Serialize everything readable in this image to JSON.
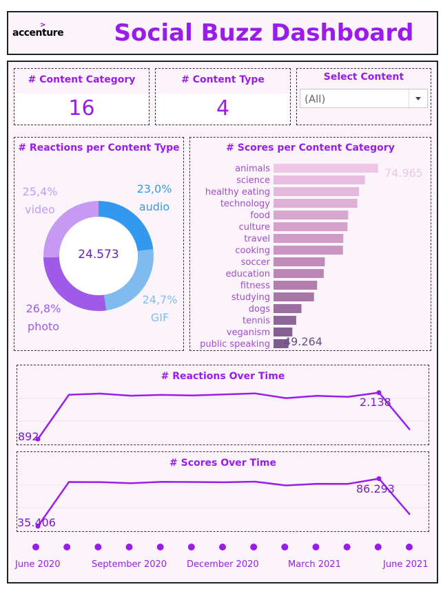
{
  "header": {
    "logo_text": "accenture",
    "logo_mark": ">",
    "title": "Social Buzz Dashboard"
  },
  "kpis": {
    "content_category": {
      "title": "# Content Category",
      "value": "16"
    },
    "content_type": {
      "title": "# Content Type",
      "value": "4"
    }
  },
  "filter": {
    "title": "Select Content",
    "selected": "(All)"
  },
  "donut": {
    "title": "# Reactions per Content Type",
    "center_value": "24.573",
    "chart_data": {
      "type": "pie",
      "slices": [
        {
          "name": "audio",
          "pct_label": "23,0%",
          "value": 23.0,
          "color": "#3399ee"
        },
        {
          "name": "GIF",
          "pct_label": "24,7%",
          "value": 24.7,
          "color": "#80bbf0"
        },
        {
          "name": "photo",
          "pct_label": "26,8%",
          "value": 26.8,
          "color": "#a05ae8"
        },
        {
          "name": "video",
          "pct_label": "25,4%",
          "value": 25.4,
          "color": "#c69af2"
        }
      ]
    }
  },
  "scores_bar": {
    "title": "# Scores per Content Category",
    "max_label": "74.965",
    "min_label": "49.264",
    "chart_data": {
      "type": "bar",
      "orientation": "horizontal",
      "categories": [
        "animals",
        "science",
        "healthy eating",
        "technology",
        "food",
        "culture",
        "travel",
        "cooking",
        "soccer",
        "education",
        "fitness",
        "studying",
        "dogs",
        "tennis",
        "veganism",
        "public speaking"
      ],
      "values": [
        74965,
        71200,
        69500,
        69000,
        66400,
        66200,
        65000,
        64900,
        59700,
        59400,
        57500,
        56600,
        53000,
        51500,
        50400,
        49264
      ],
      "xlim": [
        45000,
        76000
      ],
      "colors": [
        "#efc6e6",
        "#e8bde1",
        "#e4b7dc",
        "#dfb0d7",
        "#d8a7cf",
        "#d4a1cb",
        "#cf9bc7",
        "#cb95c3",
        "#c08bb9",
        "#bb85b5",
        "#b27ead",
        "#a777a6",
        "#9b6e9f",
        "#8f6699",
        "#865f94",
        "#7d5a90"
      ]
    }
  },
  "reactions_time": {
    "title": "# Reactions Over Time",
    "first_label": "892",
    "peak_label": "2.138",
    "chart_data": {
      "type": "line",
      "x": [
        "Jun 2020",
        "Jul 2020",
        "Aug 2020",
        "Sep 2020",
        "Oct 2020",
        "Nov 2020",
        "Dec 2020",
        "Jan 2021",
        "Feb 2021",
        "Mar 2021",
        "Apr 2021",
        "May 2021",
        "Jun 2021"
      ],
      "values": [
        892,
        2080,
        2112,
        2055,
        2078,
        2062,
        2090,
        2118,
        1990,
        2052,
        2025,
        2138,
        1140
      ],
      "ylim": [
        820,
        2500
      ]
    }
  },
  "scores_time": {
    "title": "# Scores Over Time",
    "first_label": "35.406",
    "peak_label": "86.293",
    "chart_data": {
      "type": "line",
      "x": [
        "Jun 2020",
        "Jul 2020",
        "Aug 2020",
        "Sep 2020",
        "Oct 2020",
        "Nov 2020",
        "Dec 2020",
        "Jan 2021",
        "Feb 2021",
        "Mar 2021",
        "Apr 2021",
        "May 2021",
        "Jun 2021"
      ],
      "values": [
        35406,
        82700,
        82600,
        81400,
        82900,
        82700,
        82400,
        83100,
        79000,
        80800,
        80700,
        86293,
        47800
      ],
      "ylim": [
        33000,
        100000
      ]
    }
  },
  "timeline": {
    "dot_count_label": "",
    "month_labels": [
      "June 2020",
      "September 2020",
      "December 2020",
      "March 2021",
      "June 2021"
    ]
  },
  "colors": {
    "accent": "#9b1bea",
    "background": "#fbf5fb"
  }
}
